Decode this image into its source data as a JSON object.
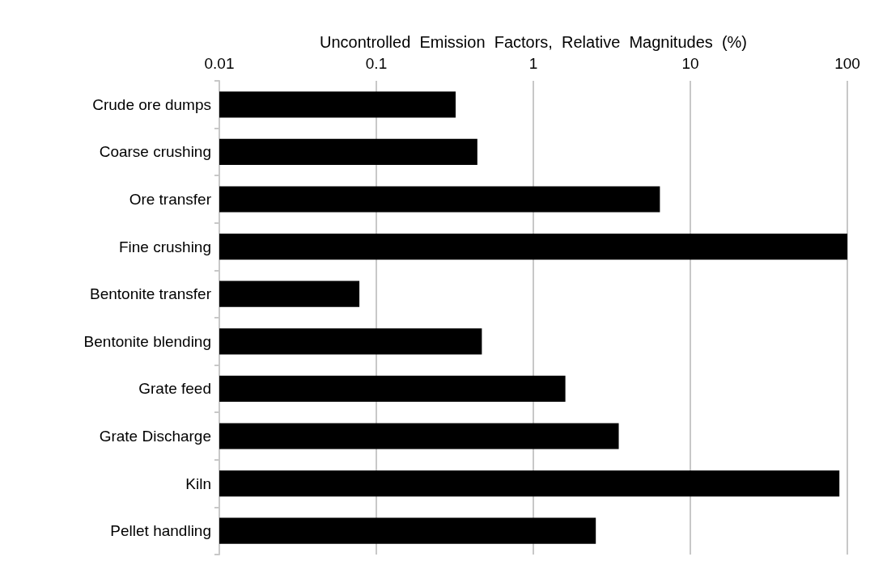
{
  "chart_data": {
    "type": "bar",
    "orientation": "horizontal",
    "log": "x",
    "xlabel": "Uncontrolled  Emission  Factors,  Relative  Magnitudes  (%)",
    "categories": [
      "Crude ore dumps",
      "Coarse crushing",
      "Ore transfer",
      "Fine crushing",
      "Bentonite transfer",
      "Bentonite blending",
      "Grate feed",
      "Grate Discharge",
      "Kiln",
      "Pellet handling"
    ],
    "values": [
      0.32,
      0.44,
      6.4,
      100,
      0.078,
      0.47,
      1.6,
      3.5,
      89,
      2.5
    ],
    "color": "#000000",
    "xlim": [
      0.01,
      100
    ],
    "xticks": [
      0.01,
      0.1,
      1,
      10,
      100
    ],
    "grid": "x"
  }
}
